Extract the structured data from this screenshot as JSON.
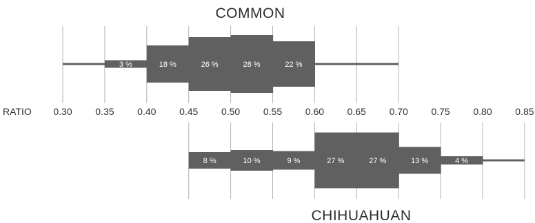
{
  "chart_data": {
    "type": "bar",
    "axis_label": "RATIO",
    "ticks": [
      0.3,
      0.35,
      0.4,
      0.45,
      0.5,
      0.55,
      0.6,
      0.65,
      0.7,
      0.75,
      0.8,
      0.85
    ],
    "tick_labels": [
      "0.30",
      "0.35",
      "0.40",
      "0.45",
      "0.50",
      "0.55",
      "0.60",
      "0.65",
      "0.70",
      "0.75",
      "0.80",
      "0.85"
    ],
    "grid": true,
    "bar_color": "#606060",
    "series": [
      {
        "name": "COMMON",
        "range": [
          0.3,
          0.7
        ],
        "bins": [
          {
            "from": 0.35,
            "to": 0.4,
            "value": 3,
            "label": "3 %"
          },
          {
            "from": 0.4,
            "to": 0.45,
            "value": 18,
            "label": "18 %"
          },
          {
            "from": 0.45,
            "to": 0.5,
            "value": 26,
            "label": "26 %"
          },
          {
            "from": 0.5,
            "to": 0.55,
            "value": 28,
            "label": "28 %"
          },
          {
            "from": 0.55,
            "to": 0.6,
            "value": 22,
            "label": "22 %"
          }
        ]
      },
      {
        "name": "CHIHUAHUAN",
        "range": [
          0.45,
          0.85
        ],
        "bins": [
          {
            "from": 0.45,
            "to": 0.5,
            "value": 8,
            "label": "8 %"
          },
          {
            "from": 0.5,
            "to": 0.55,
            "value": 10,
            "label": "10 %"
          },
          {
            "from": 0.55,
            "to": 0.6,
            "value": 9,
            "label": "9 %"
          },
          {
            "from": 0.6,
            "to": 0.65,
            "value": 27,
            "label": "27 %"
          },
          {
            "from": 0.65,
            "to": 0.7,
            "value": 27,
            "label": "27 %"
          },
          {
            "from": 0.7,
            "to": 0.75,
            "value": 13,
            "label": "13 %"
          },
          {
            "from": 0.75,
            "to": 0.8,
            "value": 4,
            "label": "4 %"
          }
        ]
      }
    ]
  }
}
